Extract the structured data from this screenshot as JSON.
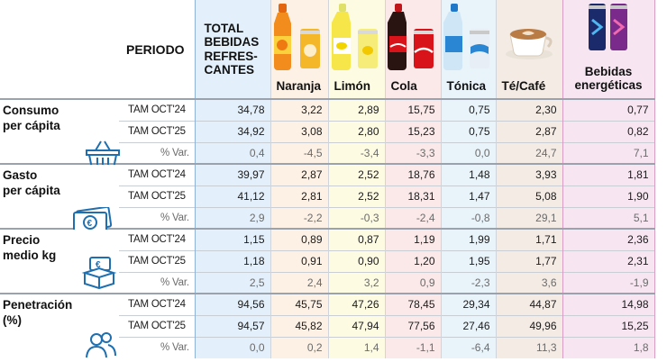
{
  "header": {
    "period": "PERIODO",
    "total_lines": [
      "TOTAL",
      "BEBIDAS",
      "REFRES-",
      "CANTES"
    ],
    "products": [
      "Naranja",
      "Limón",
      "Cola",
      "Tónica",
      "Té/Café"
    ],
    "energy_lines": [
      "Bebidas",
      "energéticas"
    ]
  },
  "sections": [
    {
      "label_lines": [
        "Consumo",
        "per cápita"
      ],
      "icon": "basket-icon",
      "rows": [
        {
          "period": "TAM OCT'24",
          "values": [
            "34,78",
            "3,22",
            "2,89",
            "15,75",
            "0,75",
            "2,30",
            "0,77"
          ]
        },
        {
          "period": "TAM OCT'25",
          "values": [
            "34,92",
            "3,08",
            "2,80",
            "15,23",
            "0,75",
            "2,87",
            "0,82"
          ]
        },
        {
          "period": "% Var.",
          "values": [
            "0,4",
            "-4,5",
            "-3,4",
            "-3,3",
            "0,0",
            "24,7",
            "7,1"
          ]
        }
      ]
    },
    {
      "label_lines": [
        "Gasto",
        "per cápita"
      ],
      "icon": "euro-banknote-icon",
      "rows": [
        {
          "period": "TAM OCT'24",
          "values": [
            "39,97",
            "2,87",
            "2,52",
            "18,76",
            "1,48",
            "3,93",
            "1,81"
          ]
        },
        {
          "period": "TAM OCT'25",
          "values": [
            "41,12",
            "2,81",
            "2,52",
            "18,31",
            "1,47",
            "5,08",
            "1,90"
          ]
        },
        {
          "period": "% Var.",
          "values": [
            "2,9",
            "-2,2",
            "-0,3",
            "-2,4",
            "-0,8",
            "29,1",
            "5,1"
          ]
        }
      ]
    },
    {
      "label_lines": [
        "Precio",
        "medio kg"
      ],
      "icon": "euro-box-icon",
      "rows": [
        {
          "period": "TAM OCT'24",
          "values": [
            "1,15",
            "0,89",
            "0,87",
            "1,19",
            "1,99",
            "1,71",
            "2,36"
          ]
        },
        {
          "period": "TAM OCT'25",
          "values": [
            "1,18",
            "0,91",
            "0,90",
            "1,20",
            "1,95",
            "1,77",
            "2,31"
          ]
        },
        {
          "period": "% Var.",
          "values": [
            "2,5",
            "2,4",
            "3,2",
            "0,9",
            "-2,3",
            "3,6",
            "-1,9"
          ]
        }
      ]
    },
    {
      "label_lines": [
        "Penetración",
        "(%)"
      ],
      "icon": "people-icon",
      "rows": [
        {
          "period": "TAM OCT'24",
          "values": [
            "94,56",
            "45,75",
            "47,26",
            "78,45",
            "29,34",
            "44,87",
            "14,98"
          ]
        },
        {
          "period": "TAM OCT'25",
          "values": [
            "94,57",
            "45,82",
            "47,94",
            "77,56",
            "27,46",
            "49,96",
            "15,25"
          ]
        },
        {
          "period": "% Var.",
          "values": [
            "0,0",
            "0,2",
            "1,4",
            "-1,1",
            "-6,4",
            "11,3",
            "1,8"
          ]
        }
      ]
    }
  ],
  "chart_data": {
    "type": "table",
    "columns": [
      "TOTAL BEBIDAS REFRESCANTES",
      "Naranja",
      "Limón",
      "Cola",
      "Tónica",
      "Té/Café",
      "Bebidas energéticas"
    ],
    "periods": [
      "TAM OCT'24",
      "TAM OCT'25",
      "% Var."
    ],
    "metrics": [
      {
        "name": "Consumo per cápita",
        "TAM OCT'24": [
          34.78,
          3.22,
          2.89,
          15.75,
          0.75,
          2.3,
          0.77
        ],
        "TAM OCT'25": [
          34.92,
          3.08,
          2.8,
          15.23,
          0.75,
          2.87,
          0.82
        ],
        "% Var.": [
          0.4,
          -4.5,
          -3.4,
          -3.3,
          0.0,
          24.7,
          7.1
        ]
      },
      {
        "name": "Gasto per cápita",
        "TAM OCT'24": [
          39.97,
          2.87,
          2.52,
          18.76,
          1.48,
          3.93,
          1.81
        ],
        "TAM OCT'25": [
          41.12,
          2.81,
          2.52,
          18.31,
          1.47,
          5.08,
          1.9
        ],
        "% Var.": [
          2.9,
          -2.2,
          -0.3,
          -2.4,
          -0.8,
          29.1,
          5.1
        ]
      },
      {
        "name": "Precio medio kg",
        "TAM OCT'24": [
          1.15,
          0.89,
          0.87,
          1.19,
          1.99,
          1.71,
          2.36
        ],
        "TAM OCT'25": [
          1.18,
          0.91,
          0.9,
          1.2,
          1.95,
          1.77,
          2.31
        ],
        "% Var.": [
          2.5,
          2.4,
          3.2,
          0.9,
          -2.3,
          3.6,
          -1.9
        ]
      },
      {
        "name": "Penetración (%)",
        "TAM OCT'24": [
          94.56,
          45.75,
          47.26,
          78.45,
          29.34,
          44.87,
          14.98
        ],
        "TAM OCT'25": [
          94.57,
          45.82,
          47.94,
          77.56,
          27.46,
          49.96,
          15.25
        ],
        "% Var.": [
          0.0,
          0.2,
          1.4,
          -1.1,
          -6.4,
          11.3,
          1.8
        ]
      }
    ]
  },
  "colors": {
    "total_column": "#e3effa",
    "naranja": "#fdf1e5",
    "limon": "#fdfbe2",
    "cola": "#fbe9e9",
    "tonica": "#e9f3fa",
    "tecafe": "#f3ebe4",
    "energeticas": "#f7e6f1",
    "icon_blue": "#1f6fb0"
  }
}
